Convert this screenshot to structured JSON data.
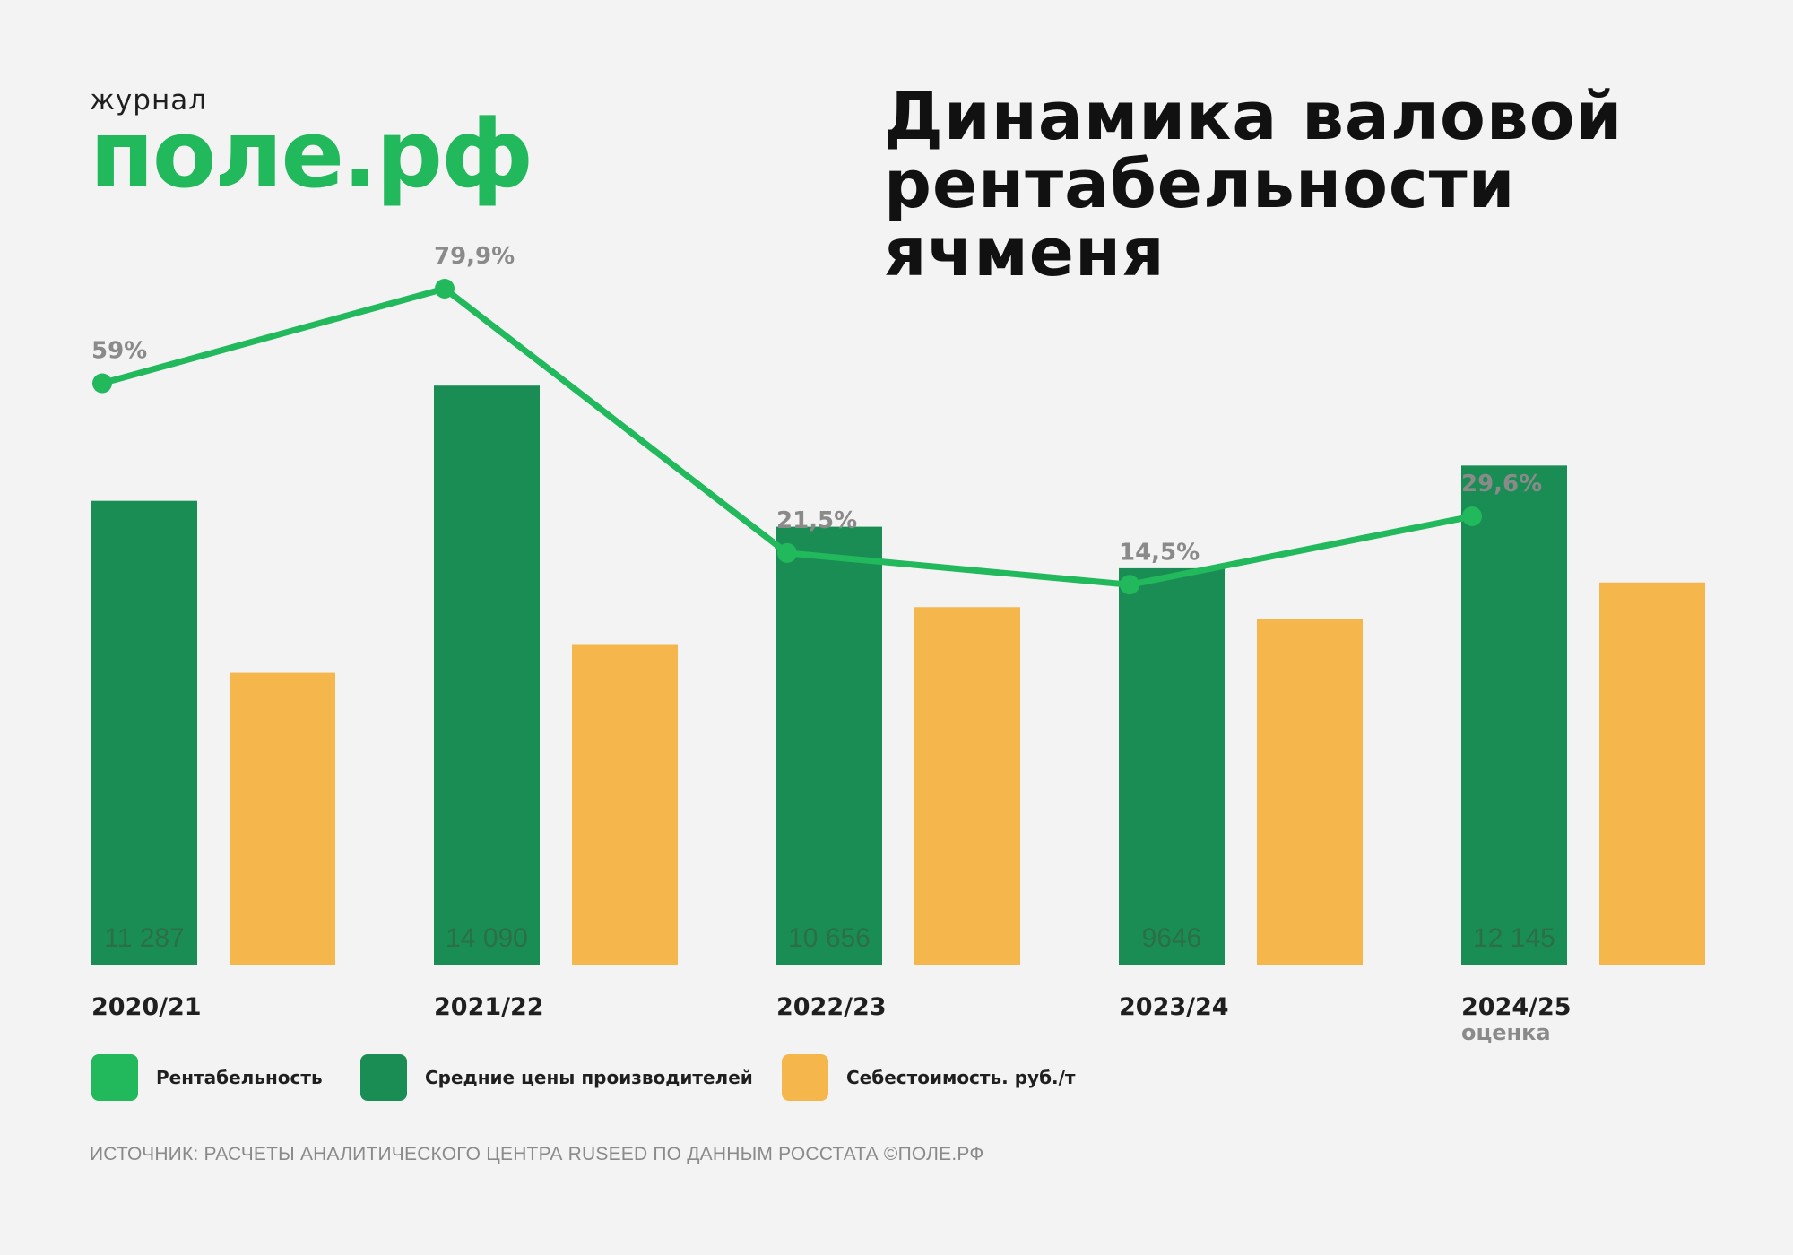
{
  "logo": {
    "top": "журнал",
    "main": "поле.рф"
  },
  "title_line1": "Динамика валовой",
  "title_line2": "рентабельности ячменя",
  "colors": {
    "line": "#22b85c",
    "price": "#1a8d55",
    "cost": "#f5b74c",
    "point_label": "#8a8a8a",
    "text": "#1f1f1f"
  },
  "chart_data": {
    "type": "bar",
    "categories": [
      "2020/21",
      "2021/22",
      "2022/23",
      "2023/24",
      "2024/25"
    ],
    "category_notes": [
      "",
      "",
      "",
      "",
      "оценка"
    ],
    "series": [
      {
        "name": "Средние цены производителей",
        "values": [
          11287,
          14090,
          10656,
          9646,
          12145
        ],
        "labels": [
          "11 287",
          "14 090",
          "10 656",
          "9646",
          "12 145"
        ]
      },
      {
        "name": "Себестоимость. руб./т",
        "values": [
          7100,
          7800,
          8700,
          8400,
          9300
        ]
      },
      {
        "name": "Рентабельность",
        "type": "line",
        "values": [
          59,
          79.9,
          21.5,
          14.5,
          29.6
        ],
        "labels": [
          "59%",
          "79,9%",
          "21,5%",
          "14,5%",
          "29,6%"
        ]
      }
    ],
    "legend_position": "bottom-left",
    "grid": false
  },
  "legend": [
    {
      "label": "Рентабельность",
      "color": "#22b85c"
    },
    {
      "label": "Средние цены производителей",
      "color": "#1a8d55"
    },
    {
      "label": "Себестоимость. руб./т",
      "color": "#f5b74c"
    }
  ],
  "source": "ИСТОЧНИК: РАСЧЕТЫ АНАЛИТИЧЕСКОГО ЦЕНТРА RUSEED ПО ДАННЫМ РОССТАТА ©ПОЛЕ.РФ"
}
